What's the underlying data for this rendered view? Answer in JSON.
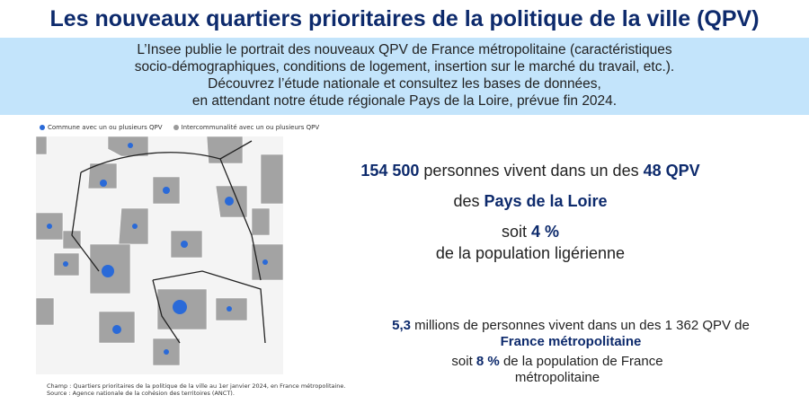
{
  "title": "Les nouveaux quartiers prioritaires de la politique de la ville (QPV)",
  "banner": {
    "lines": [
      "L’Insee publie le portrait des nouveaux QPV de France métropolitaine (caractéristiques",
      "socio-démographiques, conditions de logement, insertion sur le marché du travail, etc.).",
      "Découvrez l’étude nationale et consultez les bases de données,",
      "en attendant notre étude régionale Pays de la Loire, prévue fin 2024."
    ]
  },
  "legend": {
    "commune": "Commune avec un ou plusieurs QPV",
    "interco": "Intercommunalité avec un ou plusieurs QPV",
    "commune_color": "#2a6ad8",
    "interco_color": "#9a9a9a"
  },
  "notes": {
    "champ": "Champ : Quartiers prioritaires de la politique de la ville au 1er janvier 2024, en France métropolitaine.",
    "source": "Source : Agence nationale de la cohésion des territoires (ANCT)."
  },
  "regional": {
    "people": "154 500",
    "line1_mid": " personnes vivent dans un des ",
    "qpv": "48 QPV",
    "line2_pre": "des ",
    "region": "Pays de la Loire",
    "line3_pre": "soit ",
    "pct": "4 %",
    "line4": "de la population ligérienne"
  },
  "national": {
    "people": "5,3",
    "line1_mid": " millions de personnes vivent dans un des 1 362 QPV de",
    "area": "France métropolitaine",
    "line3_pre": "soit ",
    "pct": "8 %",
    "line3_post": " de la population de France",
    "line4": "métropolitaine"
  }
}
